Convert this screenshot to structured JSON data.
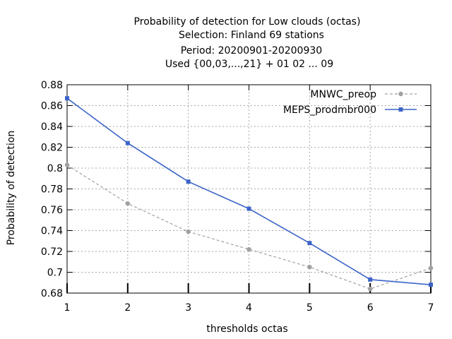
{
  "chart_data": {
    "type": "line",
    "title_lines": [
      "Probability of detection  for Low clouds (octas)",
      "Selection: Finland     69 stations",
      "Period: 20200901-20200930",
      "Used {00,03,...,21} + 01 02 ... 09"
    ],
    "xlabel": "thresholds octas",
    "ylabel": "Probability of detection",
    "x": [
      1,
      2,
      3,
      4,
      5,
      6,
      7
    ],
    "xlim": [
      1,
      7
    ],
    "ylim": [
      0.68,
      0.88
    ],
    "y_ticks": [
      "0.68",
      "0.7",
      "0.72",
      "0.74",
      "0.76",
      "0.78",
      "0.8",
      "0.82",
      "0.84",
      "0.86",
      "0.88"
    ],
    "x_ticks": [
      "1",
      "2",
      "3",
      "4",
      "5",
      "6",
      "7"
    ],
    "grid": true,
    "legend_position": "top-right",
    "series": [
      {
        "name": "MNWC_preop",
        "color": "#a0a0a0",
        "dash": true,
        "values": [
          0.803,
          0.766,
          0.739,
          0.722,
          0.705,
          0.684,
          0.704
        ]
      },
      {
        "name": "MEPS_prodmbr000",
        "color": "#3c64c8",
        "dash": false,
        "values": [
          0.867,
          0.824,
          0.787,
          0.761,
          0.728,
          0.693,
          0.688
        ]
      }
    ]
  }
}
